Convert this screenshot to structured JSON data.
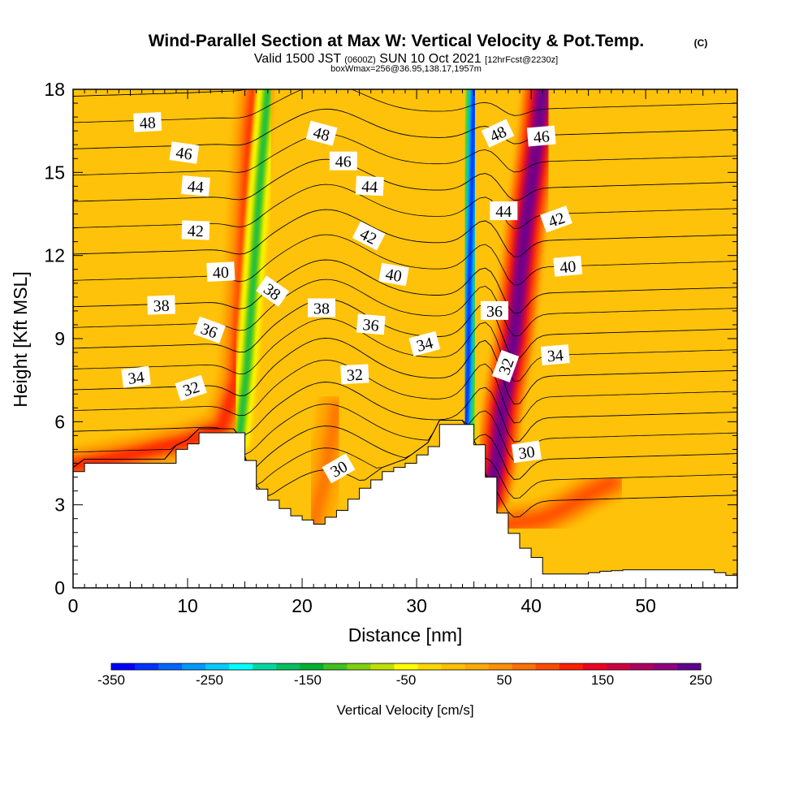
{
  "title": {
    "main": "Wind-Parallel Section at Max W: Vertical Velocity & Pot.Temp.",
    "copyright": "(C)",
    "valid_prefix": "Valid 1500 JST",
    "valid_utc": "(0600Z)",
    "valid_date": "SUN 10 Oct 2021",
    "forecast_info": "[12hrFcst@2230z]",
    "box_info": "boxWmax=256@36.95,138.17,1957m"
  },
  "chart_data": {
    "type": "heatmap",
    "xlabel": "Distance [nm]",
    "ylabel": "Height [Kft MSL]",
    "xlim": [
      0,
      58
    ],
    "ylim": [
      0,
      18
    ],
    "x_ticks": [
      "0",
      "10",
      "20",
      "30",
      "40",
      "50"
    ],
    "y_ticks": [
      "0",
      "3",
      "6",
      "9",
      "12",
      "15",
      "18"
    ],
    "colorbar": {
      "label": "Vertical Velocity [cm/s]",
      "tick_labels": [
        "-350",
        "-250",
        "-150",
        "-50",
        "50",
        "150",
        "250"
      ],
      "range": [
        -350,
        250
      ],
      "colors": [
        "#0000ff",
        "#0033ff",
        "#0066ff",
        "#0099ff",
        "#00ccff",
        "#00ffff",
        "#00d8a0",
        "#00c060",
        "#00b030",
        "#40c020",
        "#80d010",
        "#c0e000",
        "#ffff00",
        "#ffd800",
        "#ffc000",
        "#ffa800",
        "#ff9000",
        "#ff7000",
        "#ff4a00",
        "#ff2000",
        "#f00020",
        "#d00040",
        "#b00060",
        "#900080",
        "#600090"
      ]
    },
    "terrain": [
      [
        0,
        4.2
      ],
      [
        1,
        4.5
      ],
      [
        8,
        4.5
      ],
      [
        9,
        5.0
      ],
      [
        10,
        5.2
      ],
      [
        11,
        5.6
      ],
      [
        14,
        5.6
      ],
      [
        14.8,
        5.2
      ],
      [
        15.2,
        4.0
      ],
      [
        16.3,
        3.4
      ],
      [
        17.5,
        3.0
      ],
      [
        19,
        2.6
      ],
      [
        21,
        2.3
      ],
      [
        23,
        2.8
      ],
      [
        25,
        3.6
      ],
      [
        27,
        4.2
      ],
      [
        29,
        4.5
      ],
      [
        31,
        5.1
      ],
      [
        32,
        5.9
      ],
      [
        34,
        5.9
      ],
      [
        35.5,
        4.8
      ],
      [
        36,
        4.0
      ],
      [
        37,
        2.7
      ],
      [
        38.5,
        1.6
      ],
      [
        40,
        1.1
      ],
      [
        41,
        0.5
      ],
      [
        44,
        0.5
      ],
      [
        46,
        0.6
      ],
      [
        48,
        0.65
      ],
      [
        51,
        0.65
      ],
      [
        55,
        0.65
      ],
      [
        57,
        0.45
      ],
      [
        58,
        0.45
      ]
    ],
    "updraft_bands": [
      {
        "center": [
          [
            0,
            4.4
          ],
          [
            5,
            4.8
          ],
          [
            10,
            5.3
          ],
          [
            13,
            5.8
          ],
          [
            14.3,
            7.5
          ],
          [
            14.8,
            10.5
          ],
          [
            15.2,
            13.5
          ],
          [
            15.6,
            16.5
          ],
          [
            16,
            18
          ]
        ],
        "w": 120
      },
      {
        "center": [
          [
            36,
            2.5
          ],
          [
            37,
            4.5
          ],
          [
            37.5,
            6.5
          ],
          [
            38.5,
            9
          ],
          [
            39.5,
            13
          ],
          [
            40.5,
            16
          ],
          [
            41,
            18
          ]
        ],
        "w": 250
      },
      {
        "center": [
          [
            38,
            2.3
          ],
          [
            41,
            2.5
          ],
          [
            43,
            2.9
          ],
          [
            45,
            3.4
          ],
          [
            47,
            3.8
          ]
        ],
        "w": 90
      },
      {
        "center": [
          [
            21,
            2.4
          ],
          [
            22,
            4
          ],
          [
            23,
            6.5
          ]
        ],
        "w": 60
      }
    ],
    "downdraft_bands": [
      {
        "center": [
          [
            14.5,
            5.3
          ],
          [
            15.2,
            8
          ],
          [
            15.8,
            11.5
          ],
          [
            16.3,
            14.5
          ],
          [
            17,
            18
          ]
        ],
        "w": -160
      },
      {
        "center": [
          [
            34.3,
            5.5
          ],
          [
            34.5,
            8
          ],
          [
            34.6,
            11
          ],
          [
            34.8,
            14
          ],
          [
            35,
            18
          ]
        ],
        "w": -350
      }
    ],
    "theta_contour_levels": [
      30,
      32,
      34,
      36,
      38,
      40,
      42,
      44,
      46,
      48
    ],
    "theta_labels": [
      {
        "text": "48",
        "x": 6.5,
        "y": 16.8,
        "angle": -3
      },
      {
        "text": "46",
        "x": 9.7,
        "y": 15.7,
        "angle": 8
      },
      {
        "text": "44",
        "x": 10.7,
        "y": 14.5,
        "angle": 5
      },
      {
        "text": "42",
        "x": 10.7,
        "y": 12.9,
        "angle": 2
      },
      {
        "text": "40",
        "x": 12.9,
        "y": 11.4,
        "angle": -3
      },
      {
        "text": "38",
        "x": 7.7,
        "y": 10.2,
        "angle": -2
      },
      {
        "text": "36",
        "x": 11.9,
        "y": 9.3,
        "angle": 20
      },
      {
        "text": "34",
        "x": 5.5,
        "y": 7.6,
        "angle": -7
      },
      {
        "text": "32",
        "x": 10.3,
        "y": 7.2,
        "angle": -18
      },
      {
        "text": "48",
        "x": 21.7,
        "y": 16.4,
        "angle": 15
      },
      {
        "text": "46",
        "x": 23.6,
        "y": 15.4,
        "angle": 0
      },
      {
        "text": "44",
        "x": 25.9,
        "y": 14.5,
        "angle": 3
      },
      {
        "text": "42",
        "x": 25.8,
        "y": 12.7,
        "angle": 27
      },
      {
        "text": "40",
        "x": 28,
        "y": 11.3,
        "angle": 10
      },
      {
        "text": "38",
        "x": 17.4,
        "y": 10.7,
        "angle": 35
      },
      {
        "text": "38",
        "x": 21.7,
        "y": 10.1,
        "angle": 0
      },
      {
        "text": "36",
        "x": 26,
        "y": 9.5,
        "angle": 5
      },
      {
        "text": "34",
        "x": 30.7,
        "y": 8.8,
        "angle": -15
      },
      {
        "text": "32",
        "x": 24.6,
        "y": 7.7,
        "angle": -3
      },
      {
        "text": "30",
        "x": 23.2,
        "y": 4.3,
        "angle": -30
      },
      {
        "text": "48",
        "x": 37.1,
        "y": 16.4,
        "angle": -25
      },
      {
        "text": "46",
        "x": 40.9,
        "y": 16.3,
        "angle": -5
      },
      {
        "text": "44",
        "x": 37.6,
        "y": 13.6,
        "angle": 0
      },
      {
        "text": "42",
        "x": 42.2,
        "y": 13.3,
        "angle": -20
      },
      {
        "text": "40",
        "x": 43.2,
        "y": 11.6,
        "angle": -5
      },
      {
        "text": "36",
        "x": 36.8,
        "y": 10.0,
        "angle": 0
      },
      {
        "text": "34",
        "x": 42.1,
        "y": 8.4,
        "angle": -5
      },
      {
        "text": "32",
        "x": 37.8,
        "y": 8.0,
        "angle": -70
      },
      {
        "text": "30",
        "x": 39.6,
        "y": 4.9,
        "angle": -8
      }
    ]
  }
}
